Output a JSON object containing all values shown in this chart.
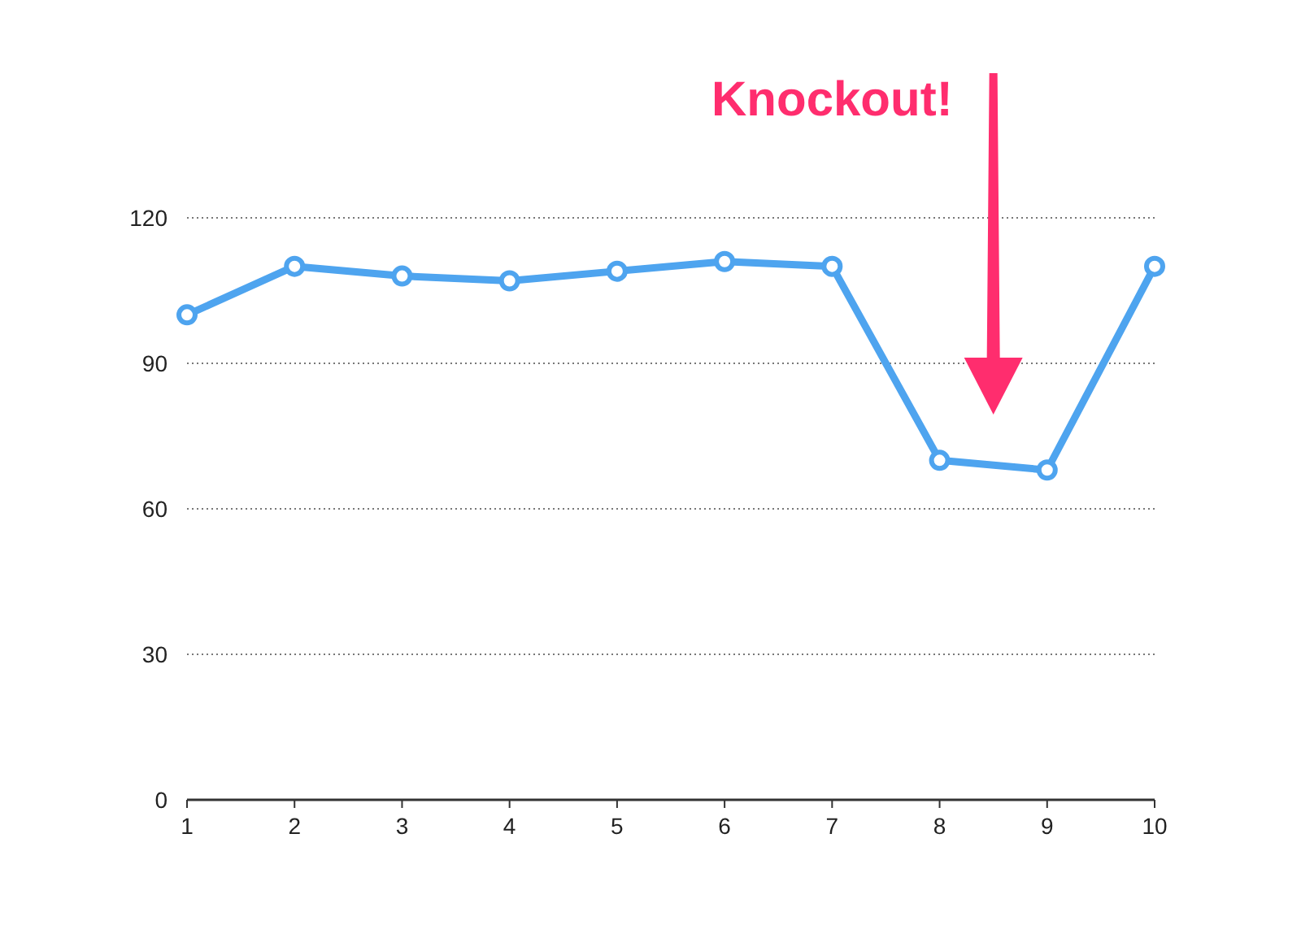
{
  "chart_data": {
    "type": "line",
    "x": [
      1,
      2,
      3,
      4,
      5,
      6,
      7,
      8,
      9,
      10
    ],
    "series": [
      {
        "color": "#4ea4ef",
        "values": [
          100,
          110,
          108,
          107,
          109,
          111,
          110,
          70,
          68,
          110
        ]
      }
    ],
    "xlim": [
      1,
      10
    ],
    "xticks": [
      1,
      2,
      3,
      4,
      5,
      6,
      7,
      8,
      9,
      10
    ],
    "ylim": [
      0,
      120
    ],
    "yticks": [
      0,
      30,
      60,
      90,
      120
    ],
    "grid": "y",
    "marker": "circle",
    "line_style": "solid",
    "annotations": [
      "Knockout!"
    ]
  }
}
